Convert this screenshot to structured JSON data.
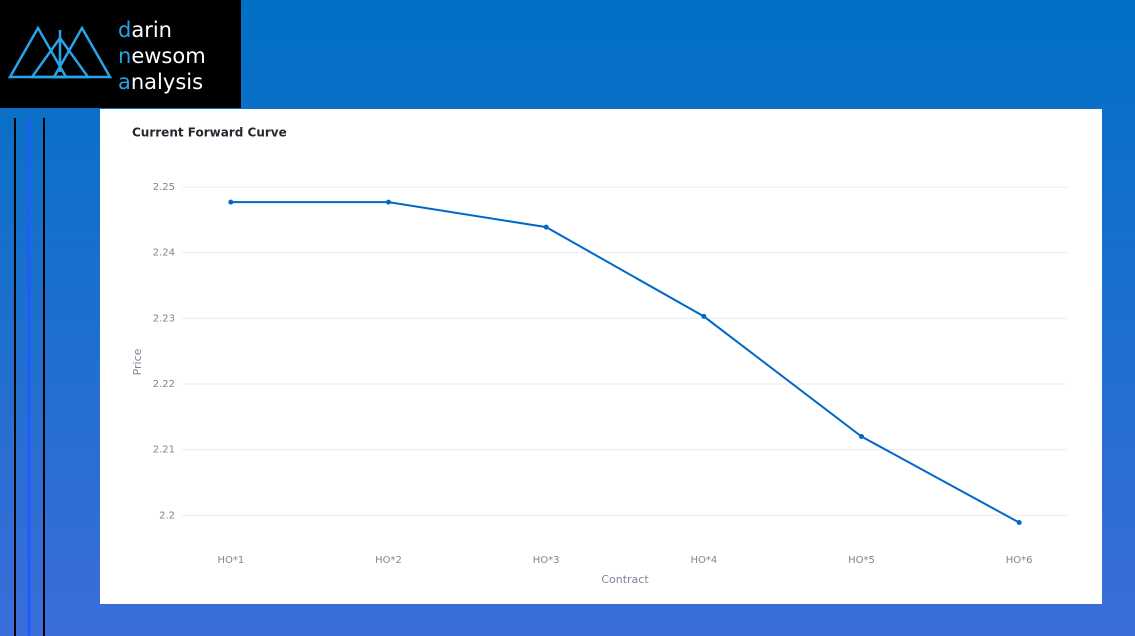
{
  "logo": {
    "lines": [
      "darin",
      "newsom",
      "analysis"
    ]
  },
  "chart_data": {
    "type": "line",
    "title": "Current Forward Curve",
    "x_label": "Contract",
    "y_label": "Price",
    "categories": [
      "HO*1",
      "HO*2",
      "HO*3",
      "HO*4",
      "HO*5",
      "HO*6"
    ],
    "values": [
      2.2477,
      2.2477,
      2.2439,
      2.2303,
      2.212,
      2.1989
    ],
    "color": "#0068c9",
    "ylim": [
      2.197,
      2.2526
    ],
    "yticks": [
      2.2,
      2.21,
      2.22,
      2.23,
      2.24,
      2.25
    ],
    "grid": true
  }
}
